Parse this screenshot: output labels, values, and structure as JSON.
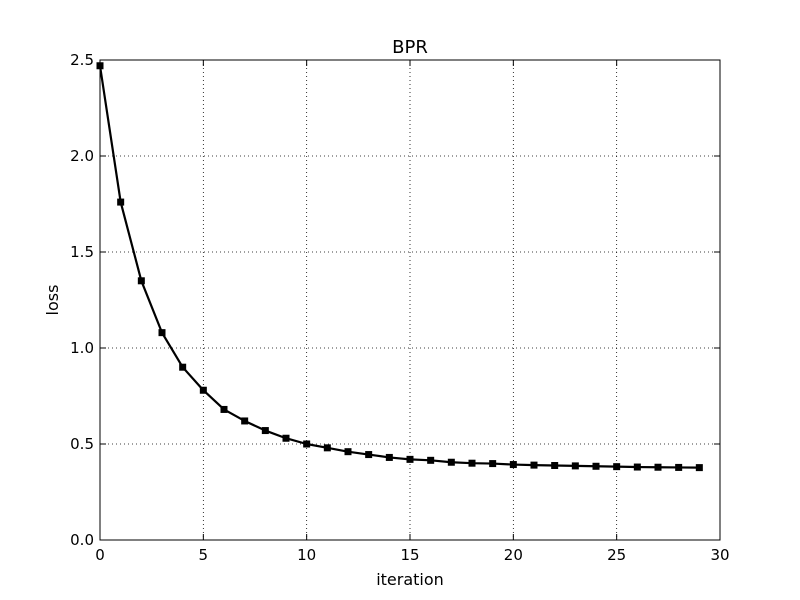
{
  "chart_data": {
    "type": "line",
    "title": "BPR",
    "xlabel": "iteration",
    "ylabel": "loss",
    "xlim": [
      0,
      30
    ],
    "ylim": [
      0.0,
      2.5
    ],
    "xticks": [
      "0",
      "5",
      "10",
      "15",
      "20",
      "25",
      "30"
    ],
    "yticks": [
      "0.0",
      "0.5",
      "1.0",
      "1.5",
      "2.0",
      "2.5"
    ],
    "grid": true,
    "series": [
      {
        "marker": "square",
        "color": "#000000",
        "x": [
          0,
          1,
          2,
          3,
          4,
          5,
          6,
          7,
          8,
          9,
          10,
          11,
          12,
          13,
          14,
          15,
          16,
          17,
          18,
          19,
          20,
          21,
          22,
          23,
          24,
          25,
          26,
          27,
          28,
          29
        ],
        "y": [
          2.47,
          1.76,
          1.35,
          1.08,
          0.9,
          0.78,
          0.68,
          0.62,
          0.57,
          0.53,
          0.5,
          0.48,
          0.46,
          0.445,
          0.43,
          0.42,
          0.415,
          0.405,
          0.4,
          0.398,
          0.393,
          0.39,
          0.388,
          0.386,
          0.384,
          0.382,
          0.38,
          0.379,
          0.378,
          0.377
        ]
      }
    ]
  }
}
